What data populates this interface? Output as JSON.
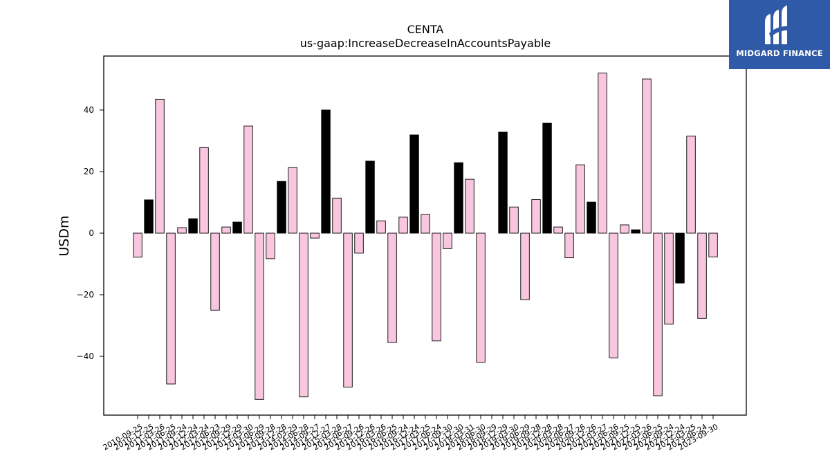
{
  "brand": {
    "name": "MIDGARD FINANCE",
    "background": "#2f5aa8"
  },
  "chart_data": {
    "type": "bar",
    "title": "CENTA",
    "subtitle": "us-gaap:IncreaseDecreaseInAccountsPayable",
    "xlabel": "",
    "ylabel": "USDm",
    "ylim": [
      -59,
      57
    ],
    "yticks": [
      40,
      20,
      0,
      -20,
      -40
    ],
    "ytick_labels": [
      "40",
      "20",
      "0",
      "−20",
      "−40"
    ],
    "grid": false,
    "colors": {
      "normal": "#f9c6e0",
      "highlight": "#000000",
      "edge": "#000000"
    },
    "categories": [
      "2010-09-25",
      "2010-12-25",
      "2011-03-26",
      "2011-06-25",
      "2011-09-24",
      "2011-12-24",
      "2012-03-24",
      "2012-06-23",
      "2012-09-29",
      "2012-12-29",
      "2013-03-30",
      "2013-06-29",
      "2013-09-28",
      "2013-12-28",
      "2014-03-29",
      "2014-06-28",
      "2014-09-27",
      "2014-12-27",
      "2015-03-28",
      "2015-06-27",
      "2015-09-26",
      "2015-12-26",
      "2016-03-26",
      "2016-06-25",
      "2016-09-24",
      "2016-12-24",
      "2017-03-25",
      "2017-06-24",
      "2017-09-30",
      "2017-12-30",
      "2018-03-31",
      "2018-06-30",
      "2018-09-29",
      "2018-12-29",
      "2019-03-30",
      "2019-06-29",
      "2019-09-28",
      "2019-12-28",
      "2020-03-28",
      "2020-06-27",
      "2020-09-26",
      "2020-12-26",
      "2021-03-27",
      "2021-06-26",
      "2021-09-25",
      "2021-12-25",
      "2022-03-26",
      "2022-06-25",
      "2022-09-24",
      "2022-12-24",
      "2023-03-25",
      "2023-06-24",
      "2023-09-30"
    ],
    "values": [
      -7.8,
      10.8,
      43.5,
      -49.0,
      1.8,
      4.7,
      27.8,
      -25.0,
      2.0,
      3.6,
      34.8,
      -54.0,
      -8.3,
      16.8,
      21.3,
      -53.2,
      -1.6,
      40.0,
      11.4,
      -50.0,
      -6.5,
      23.4,
      4.0,
      -35.5,
      5.2,
      31.9,
      6.1,
      -35.0,
      -5.0,
      22.9,
      17.5,
      -41.9,
      0.0,
      32.8,
      8.5,
      -21.6,
      10.9,
      35.7,
      2.0,
      -8.0,
      22.2,
      10.1,
      52.0,
      -40.5,
      2.7,
      1.1,
      50.1,
      -52.8,
      -29.5,
      -16.2,
      31.5,
      -27.7,
      -7.7
    ],
    "highlight": [
      false,
      true,
      false,
      false,
      false,
      true,
      false,
      false,
      false,
      true,
      false,
      false,
      false,
      true,
      false,
      false,
      false,
      true,
      false,
      false,
      false,
      true,
      false,
      false,
      false,
      true,
      false,
      false,
      false,
      true,
      false,
      false,
      false,
      true,
      false,
      false,
      false,
      true,
      false,
      false,
      false,
      true,
      false,
      false,
      false,
      true,
      false,
      false,
      false,
      true,
      false,
      false,
      false
    ]
  }
}
